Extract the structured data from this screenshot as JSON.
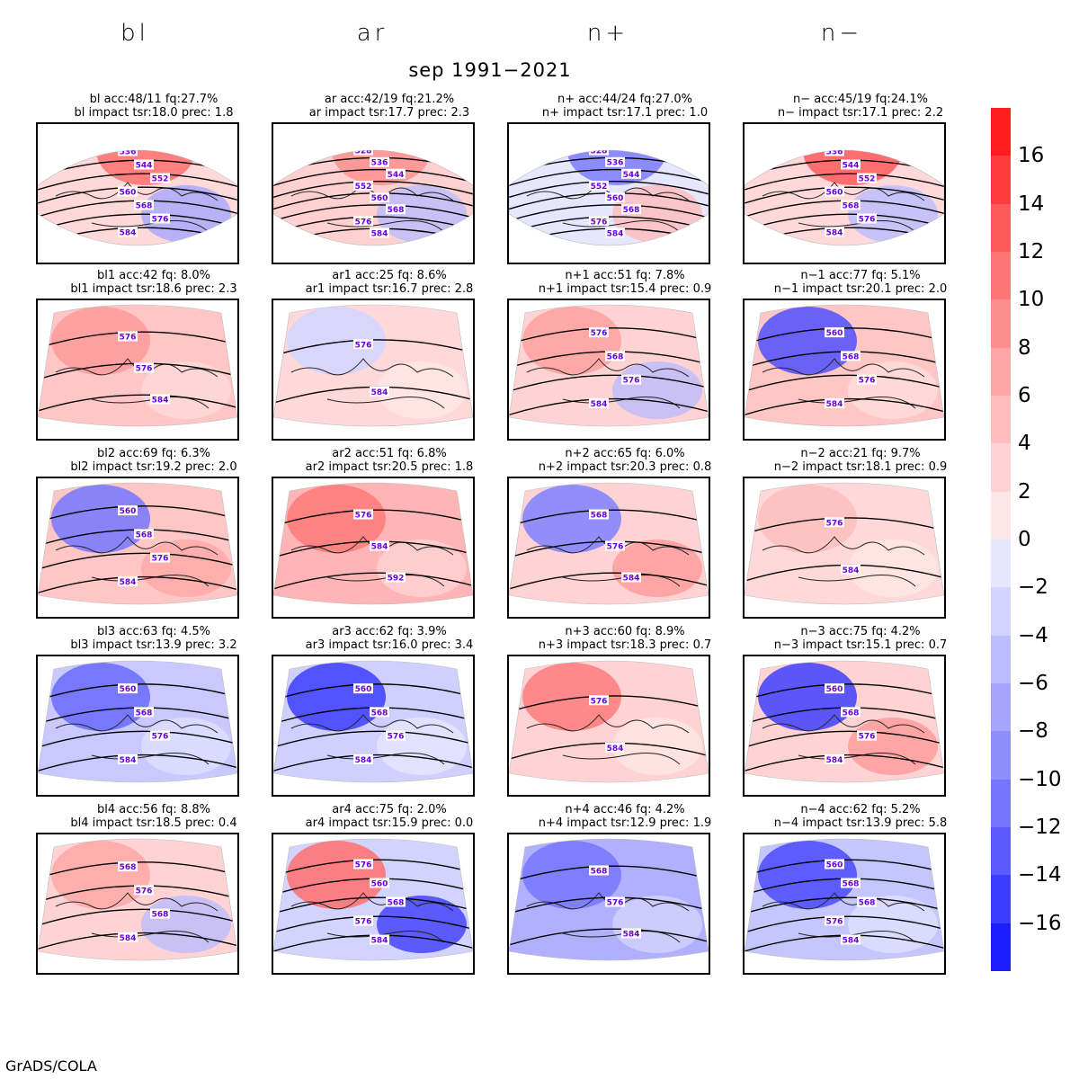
{
  "column_headers": [
    "bl",
    "ar",
    "n+",
    "n−"
  ],
  "subtitle": "sep 1991−2021",
  "footer": "GrADS/COLA",
  "colorbar": {
    "labels": [
      "16",
      "14",
      "12",
      "10",
      "8",
      "6",
      "4",
      "2",
      "0",
      "−2",
      "−4",
      "−6",
      "−8",
      "−10",
      "−12",
      "−14",
      "−16"
    ],
    "colors": [
      "#ff1c1c",
      "#ff3b3b",
      "#ff5a5a",
      "#ff7474",
      "#ff8f8f",
      "#ffa7a7",
      "#ffbdbd",
      "#ffd3d3",
      "#ffe6e6",
      "#e6e6ff",
      "#d3d3ff",
      "#bcbcff",
      "#a6a6ff",
      "#8e8eff",
      "#7575ff",
      "#5a5aff",
      "#3c3cff",
      "#1c1cff"
    ]
  },
  "panels": [
    {
      "line1": "bl acc:48/11 fq:27.7%",
      "line2": "bl impact tsr:18.0 prec: 1.8",
      "wide": true,
      "fill": "#ffd9d9",
      "blob": "#ff6e6e",
      "blob2": "#a6a6ff",
      "contours": [
        "536",
        "544",
        "552",
        "560",
        "568",
        "576",
        "584"
      ]
    },
    {
      "line1": "ar acc:42/19 fq:21.2%",
      "line2": "ar impact tsr:17.7 prec: 2.3",
      "wide": true,
      "fill": "#ffd0d0",
      "blob": "#ff9090",
      "blob2": "#bcbcff",
      "contours": [
        "528",
        "536",
        "544",
        "552",
        "560",
        "568",
        "576",
        "584"
      ]
    },
    {
      "line1": "n+ acc:44/24 fq:27.0%",
      "line2": "n+ impact tsr:17.1 prec: 1.0",
      "wide": true,
      "fill": "#e6e6ff",
      "blob": "#7b7bff",
      "blob2": "#ffbdbd",
      "contours": [
        "528",
        "536",
        "544",
        "552",
        "560",
        "568",
        "576",
        "584"
      ]
    },
    {
      "line1": "n− acc:45/19 fq:24.1%",
      "line2": "n− impact tsr:17.1 prec: 2.2",
      "wide": true,
      "fill": "#ffd9d9",
      "blob": "#ff5a5a",
      "blob2": "#bcbcff",
      "contours": [
        "536",
        "544",
        "552",
        "560",
        "568",
        "576",
        "584"
      ]
    },
    {
      "line1": "bl1 acc:42 fq: 8.0%",
      "line2": "bl1 impact tsr:18.6 prec: 2.3",
      "wide": false,
      "fill": "#ffc6c6",
      "blob": "#ff9a9a",
      "blob2": "#ffd9d9",
      "contours": [
        "576",
        "576",
        "584"
      ]
    },
    {
      "line1": "ar1 acc:25 fq: 8.6%",
      "line2": "ar1 impact tsr:16.7 prec: 2.8",
      "wide": false,
      "fill": "#ffd9d9",
      "blob": "#d3d3ff",
      "blob2": "#ffe6e6",
      "contours": [
        "576",
        "584"
      ]
    },
    {
      "line1": "n+1 acc:51 fq: 7.8%",
      "line2": "n+1 impact tsr:15.4 prec: 0.9",
      "wide": false,
      "fill": "#ffd3d3",
      "blob": "#ffa0a0",
      "blob2": "#bcbcff",
      "contours": [
        "576",
        "568",
        "576",
        "584"
      ]
    },
    {
      "line1": "n−1 acc:77 fq: 5.1%",
      "line2": "n−1 impact tsr:20.1 prec: 2.0",
      "wide": false,
      "fill": "#ffc6c6",
      "blob": "#5050ff",
      "blob2": "#ffdcdc",
      "contours": [
        "560",
        "568",
        "576",
        "584"
      ]
    },
    {
      "line1": "bl2 acc:69 fq: 6.3%",
      "line2": "bl2 impact tsr:19.2 prec: 2.0",
      "wide": false,
      "fill": "#ffc6c6",
      "blob": "#7575ff",
      "blob2": "#ffa7a7",
      "contours": [
        "560",
        "568",
        "576",
        "584"
      ]
    },
    {
      "line1": "ar2 acc:51 fq: 6.8%",
      "line2": "ar2 impact tsr:20.5 prec: 1.8",
      "wide": false,
      "fill": "#ffb5b5",
      "blob": "#ff7a7a",
      "blob2": "#ffd3d3",
      "contours": [
        "576",
        "584",
        "592"
      ]
    },
    {
      "line1": "n+2 acc:65 fq: 6.0%",
      "line2": "n+2 impact tsr:20.3 prec: 0.8",
      "wide": false,
      "fill": "#ffd3d3",
      "blob": "#8080ff",
      "blob2": "#ff9a9a",
      "contours": [
        "568",
        "576",
        "584"
      ]
    },
    {
      "line1": "n−2 acc:21 fq: 9.7%",
      "line2": "n−2 impact tsr:18.1 prec: 0.9",
      "wide": false,
      "fill": "#ffd9d9",
      "blob": "#ffbdbd",
      "blob2": "#ffe6e6",
      "contours": [
        "576",
        "584"
      ]
    },
    {
      "line1": "bl3 acc:63 fq: 4.5%",
      "line2": "bl3 impact tsr:13.9 prec: 3.2",
      "wide": false,
      "fill": "#c9c9ff",
      "blob": "#6a6aff",
      "blob2": "#e0e0ff",
      "contours": [
        "560",
        "568",
        "576",
        "584"
      ]
    },
    {
      "line1": "ar3 acc:62 fq: 3.9%",
      "line2": "ar3 impact tsr:16.0 prec: 3.4",
      "wide": false,
      "fill": "#d0d0ff",
      "blob": "#3c3cff",
      "blob2": "#e6e6ff",
      "contours": [
        "560",
        "568",
        "576",
        "584"
      ]
    },
    {
      "line1": "n+3 acc:60 fq: 8.9%",
      "line2": "n+3 impact tsr:18.3 prec: 0.7",
      "wide": false,
      "fill": "#ffd3d3",
      "blob": "#ff7a7a",
      "blob2": "#ffe6e6",
      "contours": [
        "576",
        "584"
      ]
    },
    {
      "line1": "n−3 acc:75 fq: 4.2%",
      "line2": "n−3 impact tsr:15.1 prec: 0.7",
      "wide": false,
      "fill": "#ffd3d3",
      "blob": "#4040ff",
      "blob2": "#ff9a9a",
      "contours": [
        "560",
        "568",
        "576",
        "584"
      ]
    },
    {
      "line1": "bl4 acc:56 fq: 8.8%",
      "line2": "bl4 impact tsr:18.5 prec: 0.4",
      "wide": false,
      "fill": "#ffd3d3",
      "blob": "#ffa7a7",
      "blob2": "#bcbcff",
      "contours": [
        "568",
        "576",
        "568",
        "584"
      ]
    },
    {
      "line1": "ar4 acc:75 fq: 2.0%",
      "line2": "ar4 impact tsr:15.9 prec: 0.0",
      "wide": false,
      "fill": "#d3d3ff",
      "blob": "#ff7070",
      "blob2": "#3c3cff",
      "contours": [
        "576",
        "560",
        "568",
        "576",
        "584"
      ]
    },
    {
      "line1": "n+4 acc:46 fq: 4.2%",
      "line2": "n+4 impact tsr:12.9 prec: 1.9",
      "wide": false,
      "fill": "#b0b0ff",
      "blob": "#7575ff",
      "blob2": "#d3d3ff",
      "contours": [
        "568",
        "576",
        "584"
      ]
    },
    {
      "line1": "n−4 acc:62 fq: 5.2%",
      "line2": "n−4 impact tsr:13.9 prec: 5.8",
      "wide": false,
      "fill": "#c6c6ff",
      "blob": "#4a4aff",
      "blob2": "#e0e0ff",
      "contours": [
        "560",
        "568",
        "568",
        "576",
        "584"
      ]
    }
  ]
}
